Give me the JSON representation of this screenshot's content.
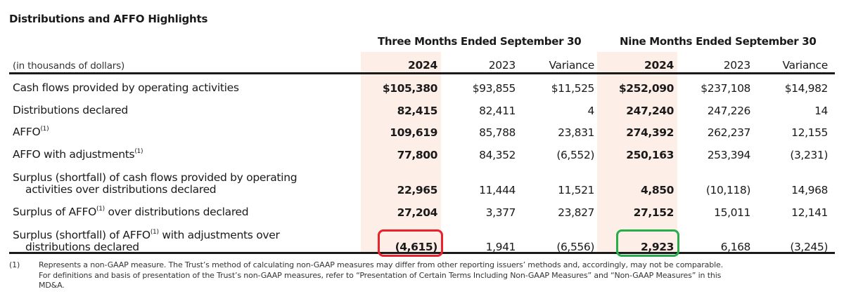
{
  "title": "Distributions and AFFO Highlights",
  "units_label": "(in thousands of dollars)",
  "column_groups": [
    {
      "label": "Three Months Ended September 30"
    },
    {
      "label": "Nine Months Ended September 30"
    }
  ],
  "columns": [
    "2024",
    "2023",
    "Variance",
    "2024",
    "2023",
    "Variance"
  ],
  "rows": [
    {
      "label": "Cash flows provided by operating activities",
      "label_line2": "",
      "sup": "",
      "values": [
        "$105,380",
        "$93,855",
        "$11,525",
        "$252,090",
        "$237,108",
        "$14,982"
      ]
    },
    {
      "label": "Distributions declared",
      "label_line2": "",
      "sup": "",
      "values": [
        "82,415",
        "82,411",
        "4",
        "247,240",
        "247,226",
        "14"
      ]
    },
    {
      "label": "AFFO",
      "label_line2": "",
      "sup": "(1)",
      "values": [
        "109,619",
        "85,788",
        "23,831",
        "274,392",
        "262,237",
        "12,155"
      ]
    },
    {
      "label": "AFFO with adjustments",
      "label_line2": "",
      "sup": "(1)",
      "values": [
        "77,800",
        "84,352",
        "(6,552)",
        "250,163",
        "253,394",
        "(3,231)"
      ]
    },
    {
      "label": "Surplus (shortfall) of cash flows provided by operating",
      "label_line2": "activities over distributions declared",
      "sup": "",
      "values": [
        "22,965",
        "11,444",
        "11,521",
        "4,850",
        "(10,118)",
        "14,968"
      ]
    },
    {
      "label": "Surplus of AFFO",
      "label_after_sup": " over distributions declared",
      "label_line2": "",
      "sup": "(1)",
      "values": [
        "27,204",
        "3,377",
        "23,827",
        "27,152",
        "15,011",
        "12,141"
      ]
    },
    {
      "label": "Surplus (shortfall) of AFFO",
      "label_after_sup": " with adjustments over",
      "label_line2": "distributions declared",
      "sup": "(1)",
      "values": [
        "(4,615)",
        "1,941",
        "(6,556)",
        "2,923",
        "6,168",
        "(3,245)"
      ]
    }
  ],
  "annotations": [
    {
      "target": "(4,615)",
      "color": "#e8232b"
    },
    {
      "target": "2,923",
      "color": "#27ad4a"
    }
  ],
  "footnote": {
    "marker": "(1)",
    "line1": "Represents a non-GAAP measure. The Trust’s method of calculating non-GAAP measures may differ from other reporting issuers’ methods and, accordingly, may not be comparable.",
    "line2": "For definitions and basis of presentation of the Trust’s non-GAAP measures, refer to “Presentation of Certain Terms Including Non-GAAP Measures” and “Non-GAAP Measures” in this",
    "line3": "MD&A."
  },
  "colors": {
    "highlight_column": "#fdeee8",
    "text": "#1a1a1a"
  }
}
